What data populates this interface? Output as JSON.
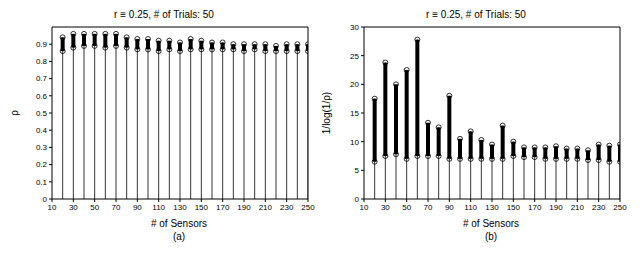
{
  "chart_data": [
    {
      "type": "box",
      "title": "r ≡ 0.25, # of Trials: 50",
      "x_label": "# of Sensors",
      "y_label": "ρ",
      "panel_label": "(a)",
      "x": [
        20,
        30,
        40,
        50,
        60,
        70,
        80,
        90,
        100,
        110,
        120,
        130,
        140,
        150,
        160,
        170,
        180,
        190,
        200,
        210,
        220,
        230,
        240,
        250
      ],
      "min": [
        0.86,
        0.88,
        0.89,
        0.89,
        0.88,
        0.89,
        0.88,
        0.87,
        0.87,
        0.86,
        0.87,
        0.86,
        0.87,
        0.87,
        0.87,
        0.87,
        0.87,
        0.86,
        0.87,
        0.86,
        0.86,
        0.86,
        0.86,
        0.86
      ],
      "max": [
        0.94,
        0.96,
        0.96,
        0.96,
        0.96,
        0.96,
        0.94,
        0.93,
        0.93,
        0.92,
        0.92,
        0.91,
        0.93,
        0.92,
        0.91,
        0.91,
        0.9,
        0.9,
        0.9,
        0.9,
        0.89,
        0.9,
        0.9,
        0.9
      ],
      "xlim": [
        10,
        250
      ],
      "xticks": [
        10,
        30,
        50,
        70,
        90,
        110,
        130,
        150,
        170,
        190,
        210,
        230,
        250
      ],
      "ylim": [
        0,
        1
      ],
      "yticks": [
        0,
        0.1,
        0.2,
        0.3,
        0.4,
        0.5,
        0.6,
        0.7,
        0.8,
        0.9
      ],
      "color": "#000000",
      "marker": "circle"
    },
    {
      "type": "box",
      "title": "r ≡ 0.25, # of Trials: 50",
      "x_label": "# of Sensors",
      "y_label": "1/log(1/ρ)",
      "panel_label": "(b)",
      "x": [
        20,
        30,
        40,
        50,
        60,
        70,
        80,
        90,
        100,
        110,
        120,
        130,
        140,
        150,
        160,
        170,
        180,
        190,
        200,
        210,
        220,
        230,
        240,
        250
      ],
      "min": [
        6.5,
        7.5,
        7.8,
        7,
        7.5,
        7.5,
        7.5,
        7,
        7,
        7,
        7,
        7,
        7,
        7.5,
        7.3,
        7.3,
        7,
        7,
        7,
        7,
        6.8,
        6.8,
        6.5,
        6.5
      ],
      "max": [
        17.5,
        23.8,
        20,
        22.5,
        27.8,
        13.3,
        12.5,
        18,
        10.5,
        11.8,
        10.3,
        9.5,
        12.8,
        10,
        9,
        9,
        9,
        9.2,
        8.8,
        8.8,
        8.5,
        9.5,
        9.3,
        9.5
      ],
      "xlim": [
        10,
        250
      ],
      "xticks": [
        10,
        30,
        50,
        70,
        90,
        110,
        130,
        150,
        170,
        190,
        210,
        230,
        250
      ],
      "ylim": [
        0,
        30
      ],
      "yticks": [
        0,
        5,
        10,
        15,
        20,
        25,
        30
      ],
      "color": "#000000",
      "marker": "circle"
    }
  ]
}
